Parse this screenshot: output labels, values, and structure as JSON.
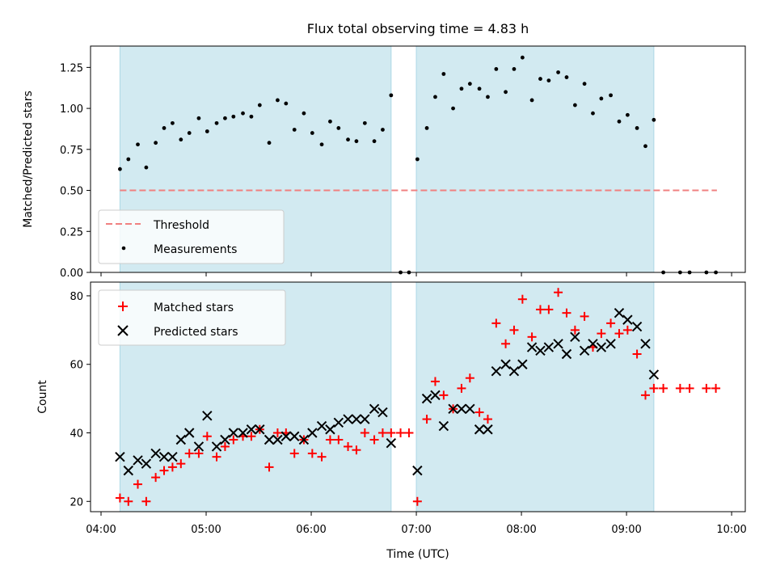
{
  "chart_data": {
    "title": "Flux total observing time = 4.83 h",
    "xlabel": "Time (UTC)",
    "x_ticks": [
      "04:00",
      "05:00",
      "06:00",
      "07:00",
      "08:00",
      "09:00",
      "10:00"
    ],
    "x_tick_hours": [
      4,
      5,
      6,
      7,
      8,
      9,
      10
    ],
    "xlim_hours": [
      3.9,
      10.13
    ],
    "shaded_intervals_hours": [
      [
        4.18,
        6.76
      ],
      [
        7.0,
        9.26
      ]
    ],
    "shade_color": "#add8e6",
    "panels": [
      {
        "type": "scatter",
        "ylabel": "Matched/Predicted stars",
        "ylim": [
          0,
          1.38
        ],
        "y_ticks": [
          "0.00",
          "0.25",
          "0.50",
          "0.75",
          "1.00",
          "1.25"
        ],
        "y_tick_values": [
          0,
          0.25,
          0.5,
          0.75,
          1.0,
          1.25
        ],
        "legend": [
          "Threshold",
          "Measurements"
        ],
        "threshold": {
          "name": "Threshold",
          "value": 0.5,
          "x_range_hours": [
            4.18,
            9.86
          ],
          "color": "#f08080"
        },
        "measurements": {
          "name": "Measurements",
          "color": "#000000",
          "x": [
            4.18,
            4.26,
            4.35,
            4.43,
            4.52,
            4.6,
            4.68,
            4.76,
            4.84,
            4.93,
            5.01,
            5.1,
            5.18,
            5.26,
            5.35,
            5.43,
            5.51,
            5.6,
            5.68,
            5.76,
            5.84,
            5.93,
            6.01,
            6.1,
            6.18,
            6.26,
            6.35,
            6.43,
            6.51,
            6.6,
            6.68,
            6.76,
            6.85,
            6.93,
            7.01,
            7.1,
            7.18,
            7.26,
            7.35,
            7.43,
            7.51,
            7.6,
            7.68,
            7.76,
            7.85,
            7.93,
            8.01,
            8.1,
            8.18,
            8.26,
            8.35,
            8.43,
            8.51,
            8.6,
            8.68,
            8.76,
            8.85,
            8.93,
            9.01,
            9.1,
            9.18,
            9.26,
            9.35,
            9.51,
            9.6,
            9.76,
            9.85
          ],
          "y": [
            0.63,
            0.69,
            0.78,
            0.64,
            0.79,
            0.88,
            0.91,
            0.81,
            0.85,
            0.94,
            0.86,
            0.91,
            0.94,
            0.95,
            0.97,
            0.95,
            1.02,
            0.79,
            1.05,
            1.03,
            0.87,
            0.97,
            0.85,
            0.78,
            0.92,
            0.88,
            0.81,
            0.8,
            0.91,
            0.8,
            0.87,
            1.08,
            0,
            0,
            0.69,
            0.88,
            1.07,
            1.21,
            1.0,
            1.12,
            1.15,
            1.12,
            1.07,
            1.24,
            1.1,
            1.24,
            1.31,
            1.05,
            1.18,
            1.17,
            1.22,
            1.19,
            1.02,
            1.15,
            0.97,
            1.06,
            1.08,
            0.92,
            0.96,
            0.88,
            0.77,
            0.93,
            0,
            0,
            0,
            0,
            0
          ]
        }
      },
      {
        "type": "scatter",
        "ylabel": "Count",
        "ylim": [
          17,
          84
        ],
        "y_ticks": [
          "20",
          "40",
          "60",
          "80"
        ],
        "y_tick_values": [
          20,
          40,
          60,
          80
        ],
        "legend": [
          "Matched stars",
          "Predicted stars"
        ],
        "series": [
          {
            "name": "Matched stars",
            "marker": "+",
            "color": "#ff0000",
            "x": [
              4.18,
              4.26,
              4.35,
              4.43,
              4.52,
              4.6,
              4.68,
              4.76,
              4.84,
              4.93,
              5.01,
              5.1,
              5.18,
              5.26,
              5.35,
              5.43,
              5.51,
              5.6,
              5.68,
              5.76,
              5.84,
              5.93,
              6.01,
              6.1,
              6.18,
              6.26,
              6.35,
              6.43,
              6.51,
              6.6,
              6.68,
              6.76,
              6.85,
              6.93,
              7.01,
              7.1,
              7.18,
              7.26,
              7.35,
              7.43,
              7.51,
              7.6,
              7.68,
              7.76,
              7.85,
              7.93,
              8.01,
              8.1,
              8.18,
              8.26,
              8.35,
              8.43,
              8.51,
              8.6,
              8.68,
              8.76,
              8.85,
              8.93,
              9.01,
              9.1,
              9.18,
              9.26,
              9.35,
              9.51,
              9.6,
              9.76,
              9.85
            ],
            "y": [
              21,
              20,
              25,
              20,
              27,
              29,
              30,
              31,
              34,
              34,
              39,
              33,
              36,
              38,
              39,
              39,
              41,
              30,
              40,
              40,
              34,
              38,
              34,
              33,
              38,
              38,
              36,
              35,
              40,
              38,
              40,
              40,
              40,
              40,
              20,
              44,
              55,
              51,
              47,
              53,
              56,
              46,
              44,
              72,
              66,
              70,
              79,
              68,
              76,
              76,
              81,
              75,
              70,
              74,
              65,
              69,
              72,
              69,
              70,
              63,
              51,
              53,
              53,
              53,
              53,
              53,
              53
            ]
          },
          {
            "name": "Predicted stars",
            "marker": "x",
            "color": "#000000",
            "x": [
              4.18,
              4.26,
              4.35,
              4.43,
              4.52,
              4.6,
              4.68,
              4.76,
              4.84,
              4.93,
              5.01,
              5.1,
              5.18,
              5.26,
              5.35,
              5.43,
              5.51,
              5.6,
              5.68,
              5.76,
              5.84,
              5.93,
              6.01,
              6.1,
              6.18,
              6.26,
              6.35,
              6.43,
              6.51,
              6.6,
              6.68,
              6.76,
              7.01,
              7.1,
              7.18,
              7.26,
              7.35,
              7.43,
              7.51,
              7.6,
              7.68,
              7.76,
              7.85,
              7.93,
              8.01,
              8.1,
              8.18,
              8.26,
              8.35,
              8.43,
              8.51,
              8.6,
              8.68,
              8.76,
              8.85,
              8.93,
              9.01,
              9.1,
              9.18,
              9.26
            ],
            "y": [
              33,
              29,
              32,
              31,
              34,
              33,
              33,
              38,
              40,
              36,
              45,
              36,
              38,
              40,
              40,
              41,
              41,
              38,
              38,
              39,
              39,
              38,
              40,
              42,
              41,
              43,
              44,
              44,
              44,
              47,
              46,
              37,
              29,
              50,
              51,
              42,
              47,
              47,
              47,
              41,
              41,
              58,
              60,
              58,
              60,
              65,
              64,
              65,
              66,
              63,
              68,
              64,
              66,
              65,
              66,
              75,
              73,
              71,
              66,
              57
            ]
          }
        ]
      }
    ]
  }
}
